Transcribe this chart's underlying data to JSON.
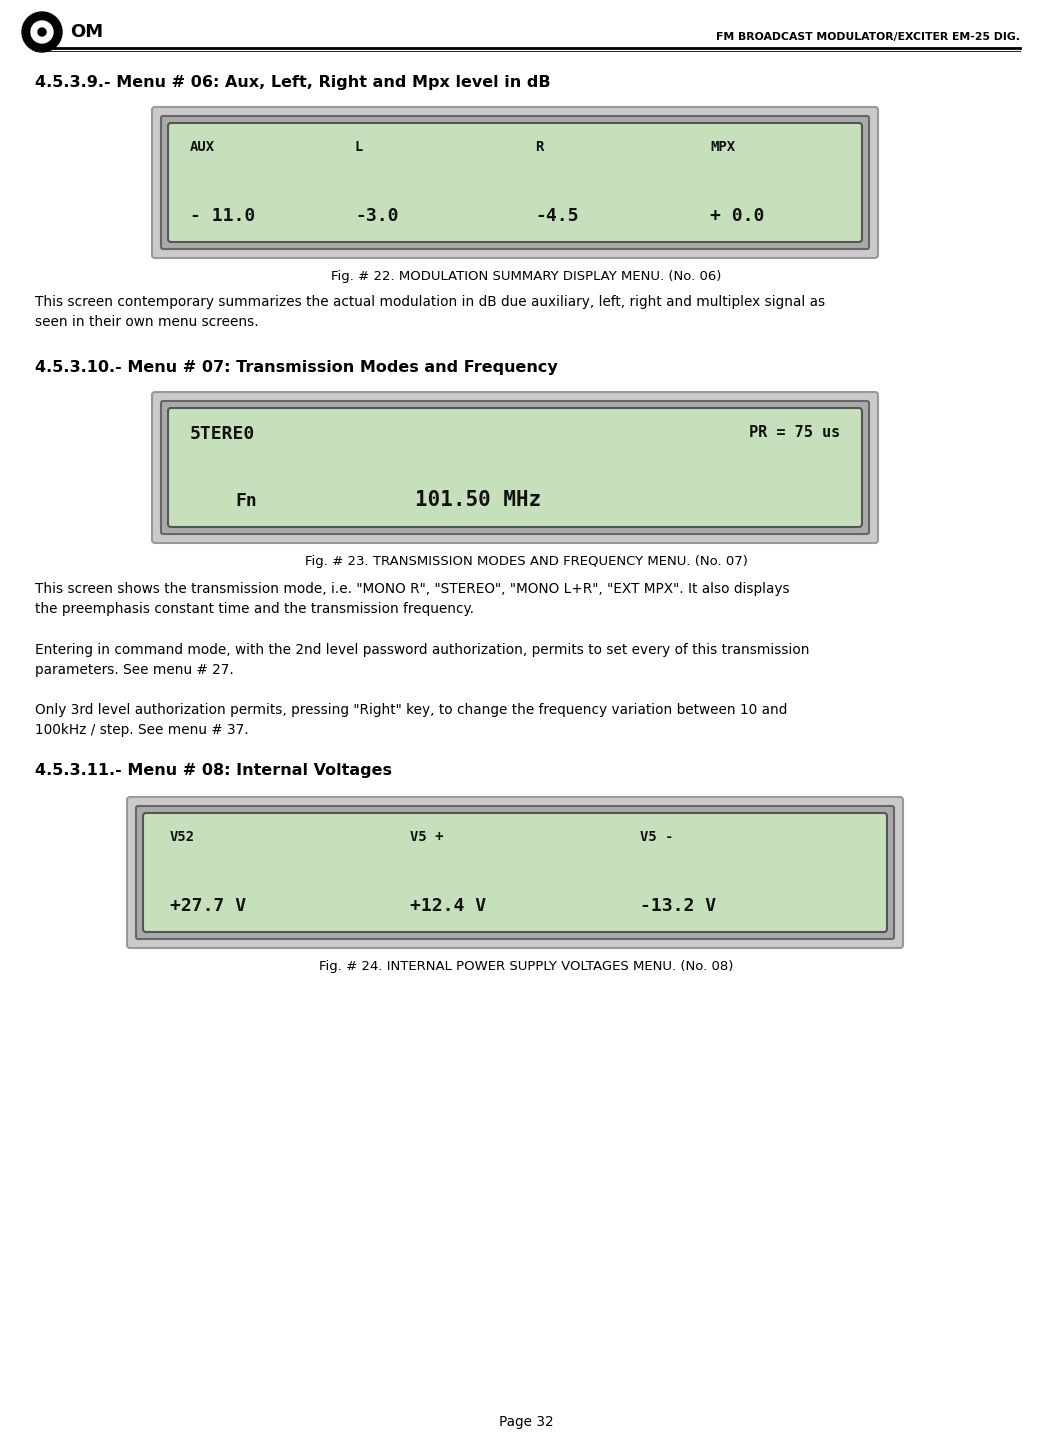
{
  "page_width": 10.53,
  "page_height": 14.54,
  "dpi": 100,
  "bg_color": "#ffffff",
  "header_title": "FM BROADCAST MODULATOR/EXCITER EM-25 DIG.",
  "section1_heading": "4.5.3.9.- Menu # 06: Aux, Left, Right and Mpx level in dB",
  "fig22_caption": "Fig. # 22. MODULATION SUMMARY DISPLAY MENU. (No. 06)",
  "fig22_row1": [
    "AUX",
    "L",
    "R",
    "MPX"
  ],
  "fig22_row2": [
    "- 11.0",
    "-3.0",
    "-4.5",
    "+ 0.0"
  ],
  "para1_line1": "This screen contemporary summarizes the actual modulation in dB due auxiliary, left, right and multiplex signal as",
  "para1_line2": "seen in their own menu screens.",
  "section2_heading": "4.5.3.10.- Menu # 07: Transmission Modes and Frequency",
  "fig23_caption": "Fig. # 23. TRANSMISSION MODES AND FREQUENCY MENU. (No. 07)",
  "fig23_row1_left": "5TERE0",
  "fig23_row1_right": "PR = 75 us",
  "fig23_row2_left": "Fn",
  "fig23_row2_right": "101.50 MHz",
  "para2_line1": "This screen shows the transmission mode, i.e. \"MONO R\", \"STEREO\", \"MONO L+R\", \"EXT MPX\". It also displays",
  "para2_line2": "the preemphasis constant time and the transmission frequency.",
  "para3_line1": "Entering in command mode, with the 2nd level password authorization, permits to set every of this transmission",
  "para3_line2": "parameters. See menu # 27.",
  "para4_line1": "Only 3rd level authorization permits, pressing \"Right\" key, to change the frequency variation between 10 and",
  "para4_line2": "100kHz / step. See menu # 37.",
  "section3_heading": "4.5.3.11.- Menu # 08: Internal Voltages",
  "fig24_caption": "Fig. # 24. INTERNAL POWER SUPPLY VOLTAGES MENU. (No. 08)",
  "fig24_row1": [
    "V52",
    "V5 +",
    "V5 -"
  ],
  "fig24_row2": [
    "+27.7 V",
    "+12.4 V",
    "-13.2 V"
  ],
  "page_num": "Page 32",
  "lcd_screen_color": "#c5e0bb",
  "lcd_outer_color": "#c8c8c8",
  "lcd_mid_color": "#b0b0b0",
  "heading_fontsize": 11.5,
  "caption_fontsize": 9.5,
  "body_fontsize": 9.8,
  "header_fontsize": 7.8,
  "lcd_label_fontsize": 10,
  "lcd_value_fontsize": 13,
  "lcd_value2_fontsize": 15,
  "page_num_fontsize": 9.8
}
